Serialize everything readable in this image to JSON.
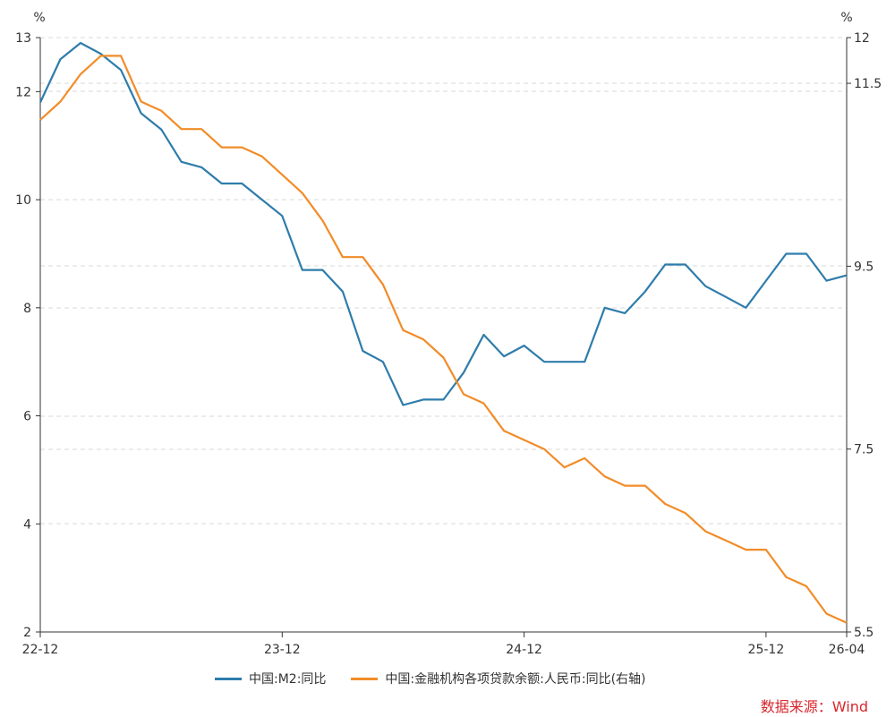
{
  "chart_data": {
    "type": "line",
    "left_axis": {
      "unit": "%",
      "ylim": [
        2,
        13
      ],
      "ticks": [
        2,
        4,
        6,
        8,
        10,
        12,
        13
      ]
    },
    "right_axis": {
      "unit": "%",
      "ylim": [
        5.5,
        12
      ],
      "ticks": [
        5.5,
        7.5,
        9.5,
        11.5,
        12
      ]
    },
    "x_ticks": [
      "22-12",
      "23-12",
      "24-12",
      "25-12",
      "26-04"
    ],
    "x_tick_index": [
      0,
      12,
      24,
      36,
      40
    ],
    "x_count": 41,
    "grid": "dashed horizontal",
    "series": [
      {
        "name": "中国:M2:同比",
        "axis": "left",
        "color": "#2e7cab",
        "values": [
          11.8,
          12.6,
          12.9,
          12.7,
          12.4,
          11.6,
          11.3,
          10.7,
          10.6,
          10.3,
          10.3,
          10.0,
          9.7,
          8.7,
          8.7,
          8.3,
          7.2,
          7.0,
          6.2,
          6.3,
          6.3,
          6.8,
          7.5,
          7.1,
          7.3,
          7.0,
          7.0,
          7.0,
          8.0,
          7.9,
          8.3,
          8.8,
          8.8,
          8.4,
          8.2,
          8.0,
          8.5,
          9.0,
          9.0,
          8.5,
          8.6
        ]
      },
      {
        "name": "中国:金融机构各项贷款余额:人民币:同比(右轴)",
        "axis": "right",
        "color": "#f28c28",
        "values": [
          11.1,
          11.3,
          11.6,
          11.8,
          11.8,
          11.3,
          11.2,
          11.0,
          11.0,
          10.8,
          10.8,
          10.7,
          10.5,
          10.3,
          10.0,
          9.6,
          9.6,
          9.3,
          8.8,
          8.7,
          8.5,
          8.1,
          8.0,
          7.7,
          7.6,
          7.5,
          7.3,
          7.4,
          7.2,
          7.1,
          7.1,
          6.9,
          6.8,
          6.6,
          6.5,
          6.4,
          6.4,
          6.1,
          6.0,
          5.7,
          5.6
        ]
      }
    ]
  },
  "source": "数据来源：Wind"
}
